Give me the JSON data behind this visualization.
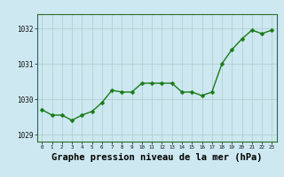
{
  "x": [
    0,
    1,
    2,
    3,
    4,
    5,
    6,
    7,
    8,
    9,
    10,
    11,
    12,
    13,
    14,
    15,
    16,
    17,
    18,
    19,
    20,
    21,
    22,
    23
  ],
  "y": [
    1029.7,
    1029.55,
    1029.55,
    1029.4,
    1029.55,
    1029.65,
    1029.9,
    1030.25,
    1030.2,
    1030.2,
    1030.45,
    1030.45,
    1030.45,
    1030.45,
    1030.2,
    1030.2,
    1030.1,
    1030.2,
    1031.0,
    1031.4,
    1031.7,
    1031.95,
    1031.85,
    1031.95
  ],
  "line_color": "#1a7a1a",
  "marker_color": "#1a7a1a",
  "bg_color": "#cde8f0",
  "plot_bg_color": "#cde8f0",
  "grid_color": "#aacccc",
  "xlabel": "Graphe pression niveau de la mer (hPa)",
  "xlabel_fontsize": 7.5,
  "ylim": [
    1028.8,
    1032.4
  ],
  "yticks": [
    1029,
    1030,
    1031,
    1032
  ],
  "xticks": [
    0,
    1,
    2,
    3,
    4,
    5,
    6,
    7,
    8,
    9,
    10,
    11,
    12,
    13,
    14,
    15,
    16,
    17,
    18,
    19,
    20,
    21,
    22,
    23
  ],
  "line_width": 1.0,
  "marker_size": 2.5
}
